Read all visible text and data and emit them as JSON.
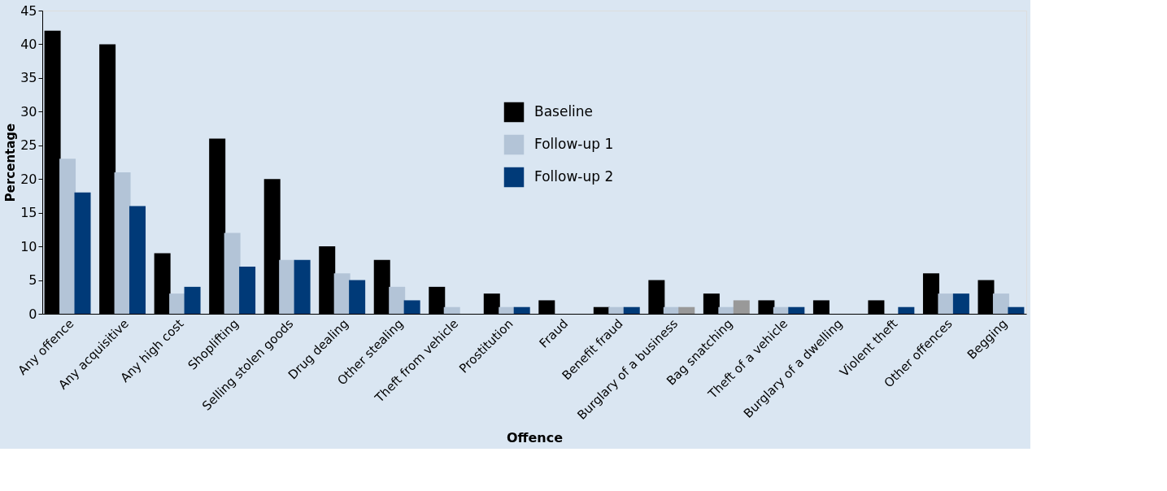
{
  "chart_data": {
    "type": "bar",
    "xlabel": "Offence",
    "ylabel": "Percentage",
    "categories": [
      "Any offence",
      "Any acquisitive",
      "Any high cost",
      "Shoplifting",
      "Selling stolen goods",
      "Drug dealing",
      "Other stealing",
      "Theft from vehicle",
      "Prostitution",
      "Fraud",
      "Benefit fraud",
      "Burglary of a business",
      "Bag snatching",
      "Theft of a vehicle",
      "Burglary of a dwelling",
      "Violent theft",
      "Other offences",
      "Begging"
    ],
    "series": [
      {
        "name": "Baseline",
        "color": "#000000",
        "values": [
          42,
          40,
          9,
          26,
          20,
          10,
          8,
          4,
          3,
          2,
          1,
          5,
          3,
          2,
          2,
          2,
          6,
          5
        ]
      },
      {
        "name": "Follow-up 1",
        "color": "#b3c4d7",
        "values": [
          23,
          21,
          3,
          12,
          8,
          6,
          4,
          1,
          1,
          0,
          1,
          1,
          1,
          1,
          0,
          0,
          3,
          3
        ]
      },
      {
        "name": "Follow-up 2",
        "color": "#003a78",
        "colors": [
          "#003a78",
          "#003a78",
          "#003a78",
          "#003a78",
          "#003a78",
          "#003a78",
          "#003a78",
          "#003a78",
          "#003a78",
          "#003a78",
          "#003a78",
          "#999999",
          "#999999",
          "#003a78",
          "#003a78",
          "#003a78",
          "#003a78",
          "#003a78"
        ],
        "values": [
          18,
          16,
          4,
          7,
          8,
          5,
          2,
          0,
          1,
          0,
          1,
          1,
          2,
          1,
          0,
          1,
          3,
          1
        ]
      }
    ],
    "ylim": [
      0,
      45
    ],
    "yticks": [
      0,
      5,
      10,
      15,
      20,
      25,
      30,
      35,
      40,
      45
    ],
    "grid": false,
    "legend": "top"
  }
}
